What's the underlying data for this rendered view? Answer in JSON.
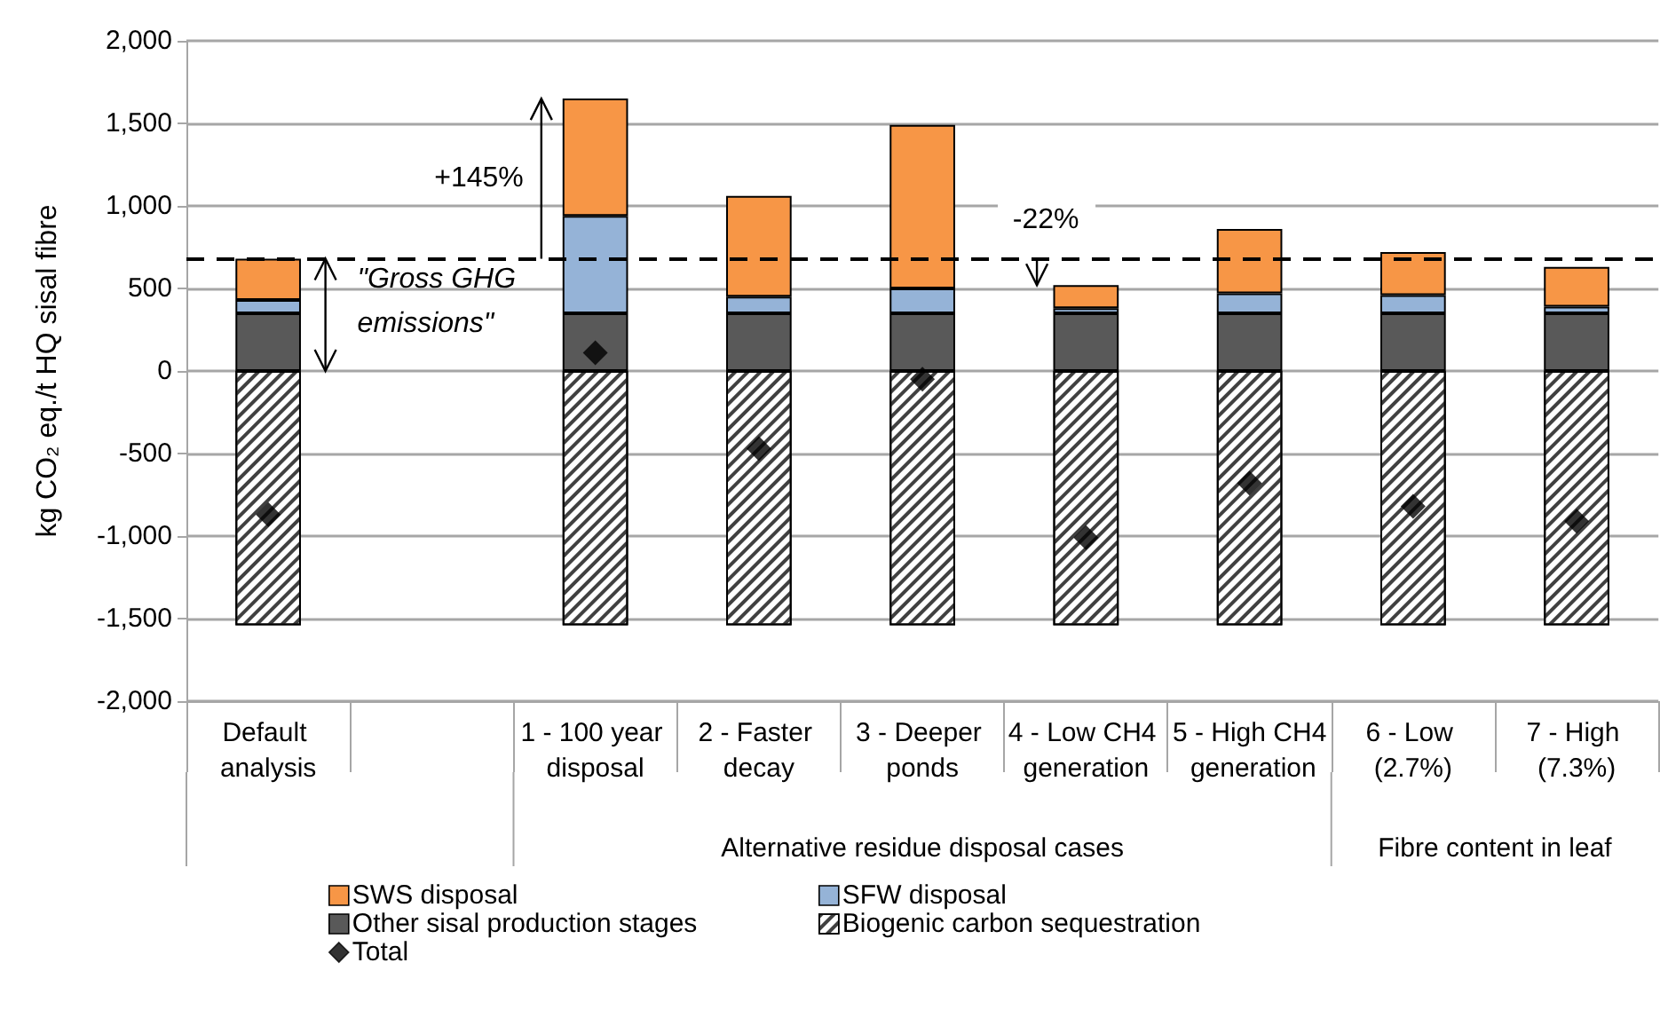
{
  "chart_data": {
    "type": "bar",
    "stacked": true,
    "ylabel": "kg CO₂ eq./t HQ sisal fibre",
    "categories": [
      "Default analysis",
      null,
      "1 - 100 year disposal",
      "2 - Faster decay",
      "3 - Deeper ponds",
      "4 - Low CH4 generation",
      "5 - High CH4 generation",
      "6 - Low (2.7%)",
      "7 - High (7.3%)"
    ],
    "series": [
      {
        "name": "Other sisal production stages",
        "color": "#595959",
        "values": [
          350,
          null,
          350,
          350,
          350,
          350,
          350,
          350,
          350
        ]
      },
      {
        "name": "SFW disposal",
        "color": "#95b3d7",
        "values": [
          80,
          null,
          590,
          100,
          150,
          30,
          120,
          110,
          40
        ]
      },
      {
        "name": "SWS disposal",
        "color": "#f79646",
        "values": [
          250,
          null,
          710,
          610,
          990,
          140,
          390,
          260,
          240
        ]
      },
      {
        "name": "Biogenic carbon sequestration",
        "color": "#ffffff",
        "values": [
          -1540,
          null,
          -1540,
          -1540,
          -1540,
          -1540,
          -1540,
          -1540,
          -1540
        ]
      },
      {
        "name": "Total",
        "type": "scatter",
        "color": "#000000",
        "marker": "diamond",
        "values": [
          -870,
          null,
          110,
          -470,
          -50,
          -1010,
          -680,
          -820,
          -910
        ]
      }
    ],
    "ylim": [
      -2000,
      2000
    ],
    "yticks": [
      {
        "value": -2000,
        "label": "-2,000"
      },
      {
        "value": -1500,
        "label": "-1,500"
      },
      {
        "value": -1000,
        "label": "-1,000"
      },
      -500,
      0,
      500,
      {
        "value": 1000,
        "label": "1,000"
      },
      {
        "value": 1500,
        "label": "1,500"
      },
      {
        "value": 2000,
        "label": "2,000"
      }
    ],
    "grid": "y",
    "legend": "bottom",
    "ref_lines": [
      {
        "axis": "y",
        "value": 680,
        "line_style": "dashed",
        "color": "#000000"
      }
    ],
    "annotations": [
      "+145%",
      {
        "text": "-22%",
        "y": 520
      },
      {
        "text": "\"Gross GHG emissions\"",
        "y": 680
      },
      "Alternative residue disposal cases",
      "Fibre content in leaf"
    ]
  }
}
